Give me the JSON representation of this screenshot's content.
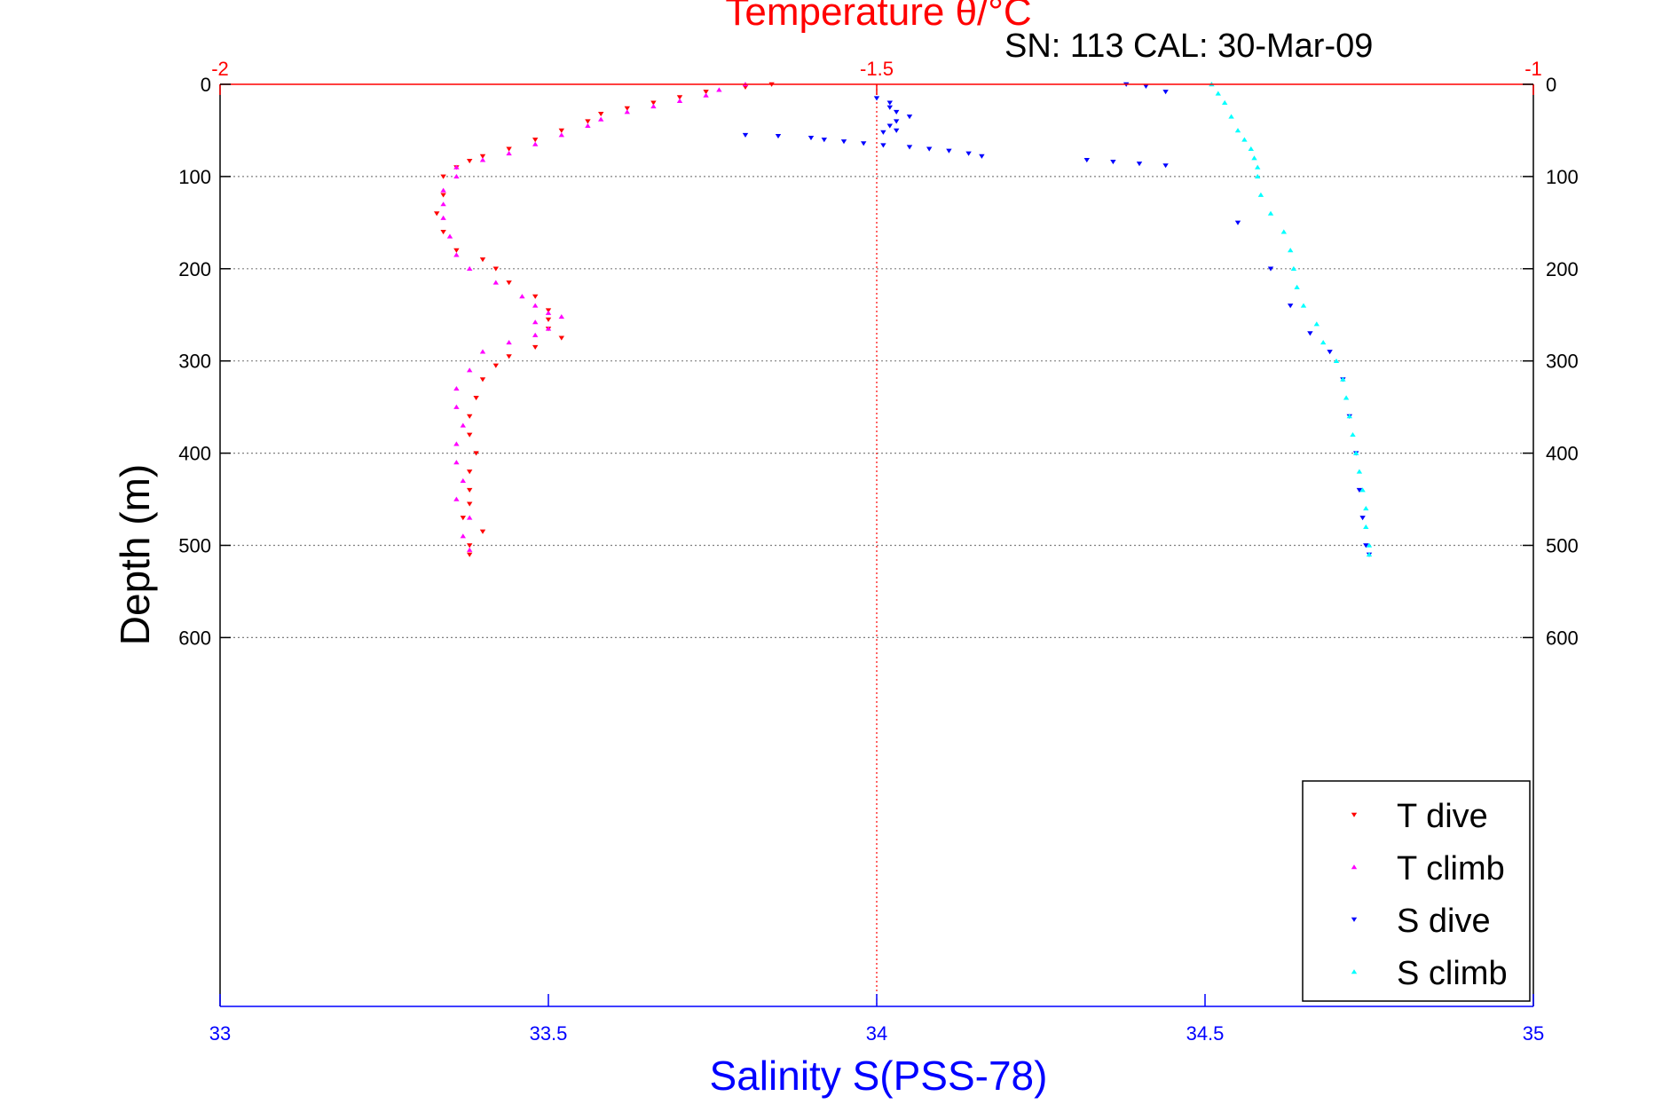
{
  "chart_data": {
    "type": "scatter",
    "title": "Temperature θ/°C",
    "subtitle": "SN: 113  CAL: 30-Mar-09",
    "xlabel": "Salinity S(PSS-78)",
    "ylabel": "Depth (m)",
    "grid": true,
    "legend_position": "bottom-right",
    "colors": {
      "temperature_axis": "#ff0000",
      "salinity_axis": "#0000ff",
      "t_dive": "#ff0000",
      "t_climb": "#ff00ff",
      "s_dive": "#0000ff",
      "s_climb": "#00ffff",
      "grid": "#808080",
      "axes": "#000000"
    },
    "top_axis": {
      "variable": "temperature",
      "lim": [
        -2,
        -1
      ],
      "ticks": [
        -2,
        -1.5,
        -1
      ],
      "tick_labels": [
        "-2",
        "-1.5",
        "-1"
      ]
    },
    "bottom_axis": {
      "variable": "salinity",
      "lim": [
        33,
        35
      ],
      "ticks": [
        33,
        33.5,
        34,
        34.5,
        35
      ],
      "tick_labels": [
        "33",
        "33.5",
        "34",
        "34.5",
        "35"
      ]
    },
    "y_axis": {
      "lim": [
        0,
        1000
      ],
      "reversed": true,
      "ticks": [
        0,
        100,
        200,
        300,
        400,
        500,
        600
      ],
      "tick_labels": [
        "0",
        "100",
        "200",
        "300",
        "400",
        "500",
        "600"
      ]
    },
    "series": [
      {
        "name": "T dive",
        "axis": "temperature",
        "marker": "triangle-down",
        "points": [
          [
            -1.58,
            0
          ],
          [
            -1.6,
            3
          ],
          [
            -1.63,
            8
          ],
          [
            -1.65,
            14
          ],
          [
            -1.67,
            20
          ],
          [
            -1.69,
            26
          ],
          [
            -1.71,
            32
          ],
          [
            -1.72,
            40
          ],
          [
            -1.74,
            50
          ],
          [
            -1.76,
            60
          ],
          [
            -1.78,
            70
          ],
          [
            -1.8,
            78
          ],
          [
            -1.81,
            83
          ],
          [
            -1.82,
            90
          ],
          [
            -1.83,
            100
          ],
          [
            -1.83,
            120
          ],
          [
            -1.835,
            140
          ],
          [
            -1.83,
            160
          ],
          [
            -1.82,
            180
          ],
          [
            -1.8,
            190
          ],
          [
            -1.79,
            200
          ],
          [
            -1.78,
            215
          ],
          [
            -1.76,
            230
          ],
          [
            -1.75,
            245
          ],
          [
            -1.75,
            255
          ],
          [
            -1.75,
            265
          ],
          [
            -1.74,
            275
          ],
          [
            -1.76,
            285
          ],
          [
            -1.78,
            295
          ],
          [
            -1.79,
            305
          ],
          [
            -1.8,
            320
          ],
          [
            -1.805,
            340
          ],
          [
            -1.81,
            360
          ],
          [
            -1.81,
            380
          ],
          [
            -1.805,
            400
          ],
          [
            -1.81,
            420
          ],
          [
            -1.81,
            440
          ],
          [
            -1.81,
            455
          ],
          [
            -1.815,
            470
          ],
          [
            -1.8,
            485
          ],
          [
            -1.81,
            500
          ],
          [
            -1.81,
            510
          ]
        ]
      },
      {
        "name": "T climb",
        "axis": "temperature",
        "marker": "triangle-up",
        "points": [
          [
            -1.6,
            0
          ],
          [
            -1.62,
            6
          ],
          [
            -1.63,
            12
          ],
          [
            -1.65,
            18
          ],
          [
            -1.67,
            24
          ],
          [
            -1.69,
            30
          ],
          [
            -1.71,
            38
          ],
          [
            -1.72,
            45
          ],
          [
            -1.74,
            55
          ],
          [
            -1.76,
            65
          ],
          [
            -1.78,
            75
          ],
          [
            -1.8,
            82
          ],
          [
            -1.82,
            90
          ],
          [
            -1.82,
            100
          ],
          [
            -1.83,
            115
          ],
          [
            -1.83,
            130
          ],
          [
            -1.83,
            145
          ],
          [
            -1.825,
            165
          ],
          [
            -1.82,
            185
          ],
          [
            -1.81,
            200
          ],
          [
            -1.79,
            215
          ],
          [
            -1.77,
            230
          ],
          [
            -1.76,
            240
          ],
          [
            -1.75,
            248
          ],
          [
            -1.74,
            252
          ],
          [
            -1.76,
            258
          ],
          [
            -1.75,
            265
          ],
          [
            -1.76,
            272
          ],
          [
            -1.78,
            280
          ],
          [
            -1.8,
            290
          ],
          [
            -1.81,
            310
          ],
          [
            -1.82,
            330
          ],
          [
            -1.82,
            350
          ],
          [
            -1.815,
            370
          ],
          [
            -1.82,
            390
          ],
          [
            -1.82,
            410
          ],
          [
            -1.815,
            430
          ],
          [
            -1.82,
            450
          ],
          [
            -1.81,
            470
          ],
          [
            -1.815,
            490
          ],
          [
            -1.81,
            505
          ]
        ]
      },
      {
        "name": "S dive",
        "axis": "salinity",
        "marker": "triangle-down",
        "points": [
          [
            34.0,
            15
          ],
          [
            34.02,
            20
          ],
          [
            34.02,
            25
          ],
          [
            34.03,
            30
          ],
          [
            34.05,
            35
          ],
          [
            34.03,
            40
          ],
          [
            34.02,
            45
          ],
          [
            34.03,
            50
          ],
          [
            34.01,
            52
          ],
          [
            33.8,
            55
          ],
          [
            33.85,
            56
          ],
          [
            33.9,
            58
          ],
          [
            33.92,
            60
          ],
          [
            33.95,
            62
          ],
          [
            33.98,
            64
          ],
          [
            34.01,
            66
          ],
          [
            34.05,
            68
          ],
          [
            34.08,
            70
          ],
          [
            34.11,
            72
          ],
          [
            34.14,
            75
          ],
          [
            34.16,
            78
          ],
          [
            34.32,
            82
          ],
          [
            34.36,
            84
          ],
          [
            34.4,
            86
          ],
          [
            34.44,
            88
          ],
          [
            34.38,
            0
          ],
          [
            34.41,
            2
          ],
          [
            34.44,
            8
          ],
          [
            34.55,
            150
          ],
          [
            34.6,
            200
          ],
          [
            34.63,
            240
          ],
          [
            34.66,
            270
          ],
          [
            34.69,
            290
          ],
          [
            34.71,
            320
          ],
          [
            34.72,
            360
          ],
          [
            34.73,
            400
          ],
          [
            34.735,
            440
          ],
          [
            34.74,
            470
          ],
          [
            34.745,
            500
          ],
          [
            34.75,
            510
          ]
        ]
      },
      {
        "name": "S climb",
        "axis": "salinity",
        "marker": "triangle-up",
        "points": [
          [
            34.51,
            0
          ],
          [
            34.52,
            10
          ],
          [
            34.53,
            20
          ],
          [
            34.54,
            35
          ],
          [
            34.55,
            50
          ],
          [
            34.56,
            60
          ],
          [
            34.57,
            70
          ],
          [
            34.575,
            80
          ],
          [
            34.58,
            90
          ],
          [
            34.58,
            100
          ],
          [
            34.585,
            120
          ],
          [
            34.6,
            140
          ],
          [
            34.62,
            160
          ],
          [
            34.63,
            180
          ],
          [
            34.635,
            200
          ],
          [
            34.64,
            220
          ],
          [
            34.65,
            240
          ],
          [
            34.67,
            260
          ],
          [
            34.68,
            280
          ],
          [
            34.7,
            300
          ],
          [
            34.71,
            320
          ],
          [
            34.715,
            340
          ],
          [
            34.72,
            360
          ],
          [
            34.725,
            380
          ],
          [
            34.73,
            400
          ],
          [
            34.735,
            420
          ],
          [
            34.74,
            440
          ],
          [
            34.745,
            460
          ],
          [
            34.745,
            480
          ],
          [
            34.75,
            500
          ],
          [
            34.75,
            510
          ]
        ]
      }
    ]
  }
}
